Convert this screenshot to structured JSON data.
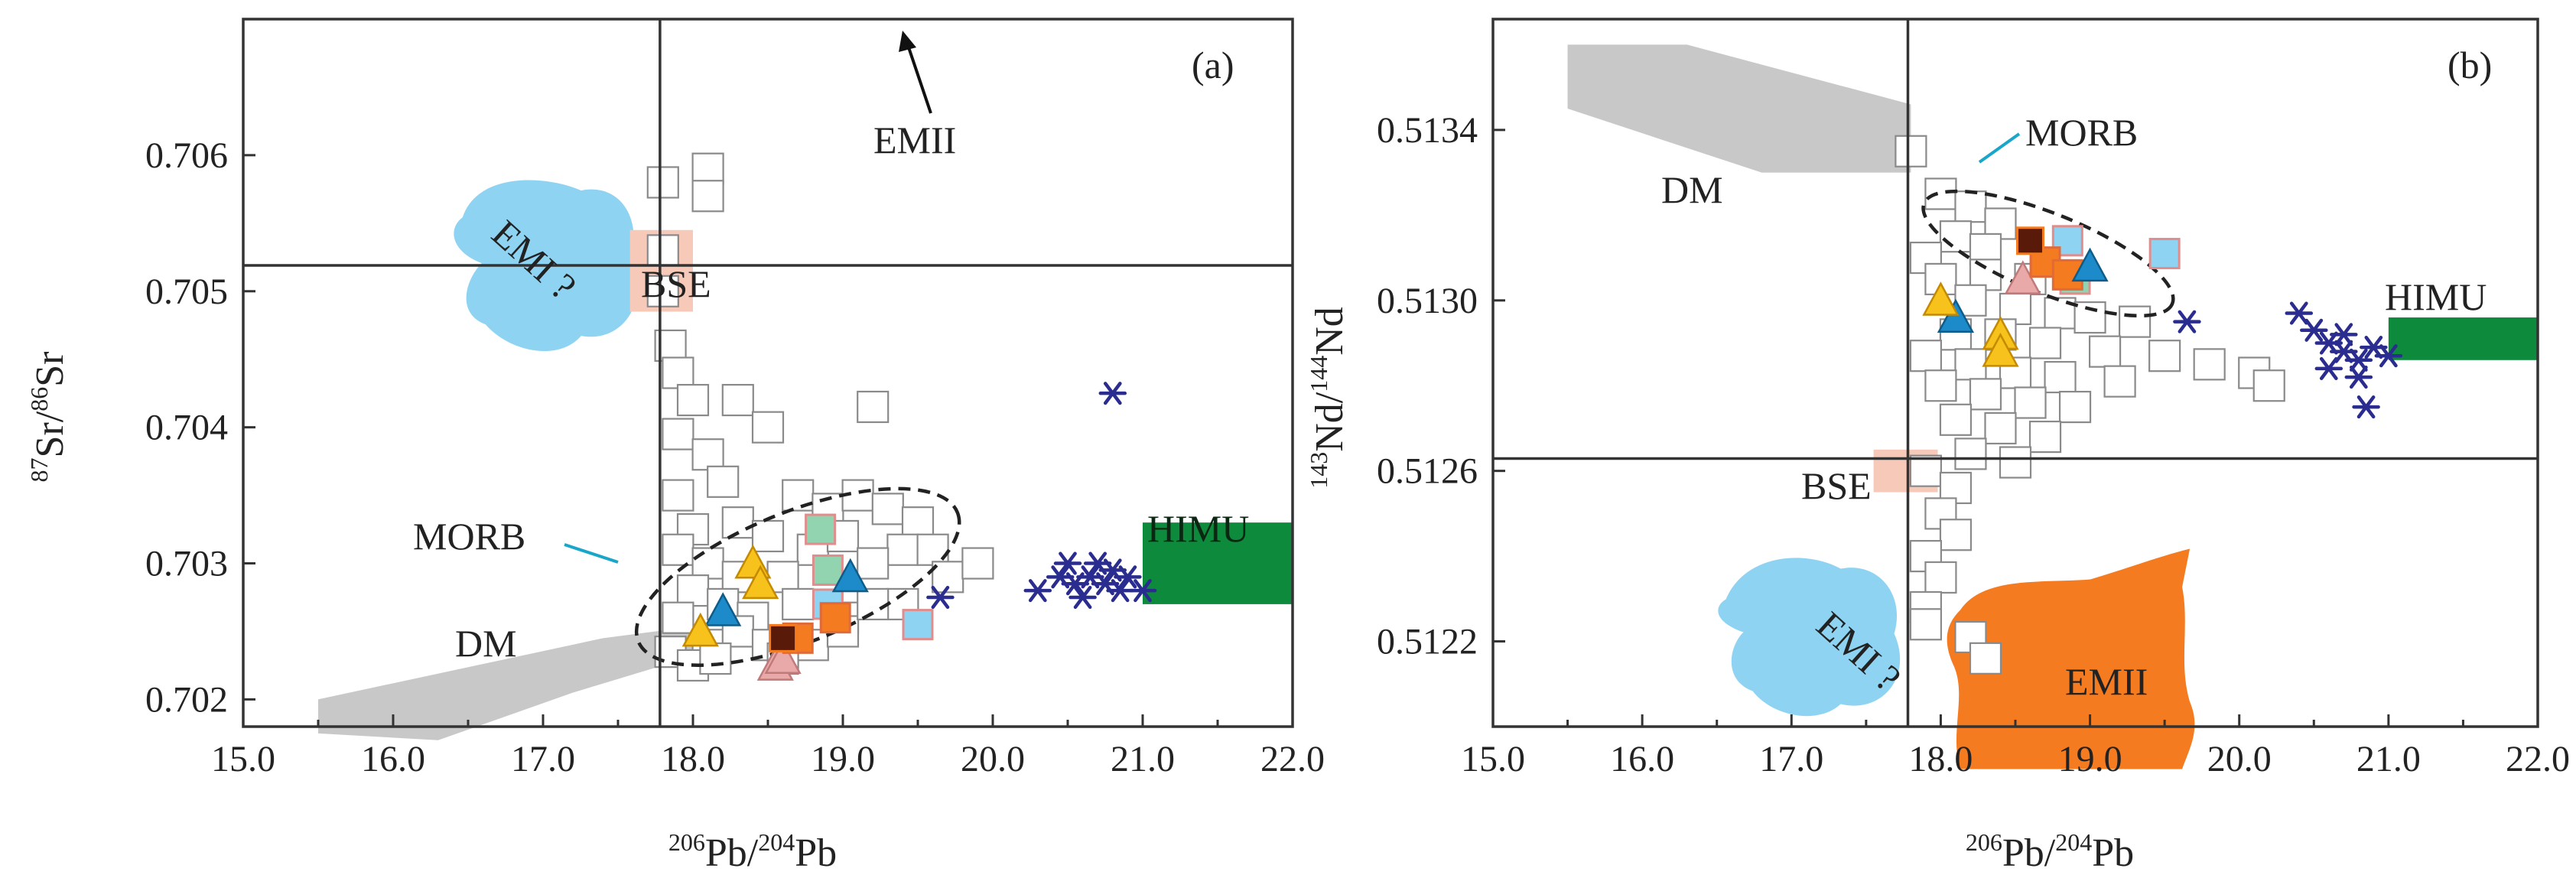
{
  "figure": {
    "panels": [
      {
        "panel_label": "(a)",
        "xlabel": {
          "sup": "206",
          "main": "Pb/",
          "sup2": "204",
          "main2": "Pb"
        },
        "ylabel": {
          "sup": "87",
          "main": "Sr/",
          "sup2": "86",
          "main2": "Sr"
        },
        "x_ticks": [
          "15.0",
          "16.0",
          "17.0",
          "18.0",
          "19.0",
          "20.0",
          "21.0",
          "22.0"
        ],
        "y_ticks": [
          "0.702",
          "0.703",
          "0.704",
          "0.705",
          "0.706"
        ],
        "fields": {
          "EMII": "EMII",
          "EMI": "EMI ?",
          "BSE": "BSE",
          "MORB": "MORB",
          "HIMU": "HIMU",
          "DM": "DM"
        }
      },
      {
        "panel_label": "(b)",
        "xlabel": {
          "sup": "206",
          "main": "Pb/",
          "sup2": "204",
          "main2": "Pb"
        },
        "ylabel": {
          "sup": "143",
          "main": "Nd/",
          "sup2": "144",
          "main2": "Nd"
        },
        "x_ticks": [
          "15.0",
          "16.0",
          "17.0",
          "18.0",
          "19.0",
          "20.0",
          "21.0",
          "22.0"
        ],
        "y_ticks": [
          "0.5122",
          "0.5126",
          "0.5130",
          "0.5134"
        ],
        "fields": {
          "MORB": "MORB",
          "DM": "DM",
          "HIMU": "HIMU",
          "BSE": "BSE",
          "EMI": "EMI ?",
          "EMII": "EMII"
        }
      }
    ]
  },
  "colors": {
    "background_squares": "#8a8a8a",
    "dm_field": "#c8c8c8",
    "himu_field": "#0e8a3c",
    "emi_field": "#8fd3f2",
    "emii_field": "#f47b20",
    "bse_field": "#f7c9b9",
    "star_symbol": "#2a2c8f",
    "triangle_yellow": "#f7c21b",
    "triangle_blue": "#1d8bc9",
    "triangle_pink": "#e9a9a9",
    "square_orange": "#f47b20",
    "square_darkbrown": "#5a1a0a",
    "square_mint": "#92d3b0",
    "square_lightblue": "#8fd3f2",
    "morb_pointer": "#1aa6c9"
  },
  "chart_data": [
    {
      "type": "scatter",
      "title": "(a)",
      "xlabel": "206Pb/204Pb",
      "ylabel": "87Sr/86Sr",
      "xlim": [
        15.0,
        22.0
      ],
      "ylim": [
        0.7018,
        0.707
      ],
      "reference_lines": {
        "x": 17.78,
        "y": 0.70519
      },
      "fields": [
        {
          "name": "DM",
          "x_range": [
            15.5,
            18.1
          ],
          "y_range": [
            0.7017,
            0.7025
          ]
        },
        {
          "name": "HIMU",
          "x_range": [
            21.0,
            22.0
          ],
          "y_range": [
            0.7027,
            0.7033
          ]
        },
        {
          "name": "EMI ?",
          "x": 17.0,
          "y": 0.7051
        },
        {
          "name": "BSE",
          "x": 17.7,
          "y": 0.7052
        },
        {
          "name": "MORB",
          "center": [
            18.7,
            0.7029
          ]
        },
        {
          "name": "EMII",
          "direction": "off-chart, up"
        }
      ],
      "series": [
        {
          "name": "Reference data (open squares)",
          "points": [
            [
              17.8,
              0.7058
            ],
            [
              18.1,
              0.7059
            ],
            [
              18.1,
              0.7057
            ],
            [
              17.8,
              0.7053
            ],
            [
              17.8,
              0.705
            ],
            [
              17.85,
              0.7046
            ],
            [
              17.9,
              0.7044
            ],
            [
              18.0,
              0.7042
            ],
            [
              18.3,
              0.7042
            ],
            [
              18.5,
              0.704
            ],
            [
              19.2,
              0.70415
            ],
            [
              17.9,
              0.70395
            ],
            [
              18.1,
              0.7038
            ],
            [
              18.2,
              0.7036
            ],
            [
              18.7,
              0.7035
            ],
            [
              18.9,
              0.7034
            ],
            [
              19.1,
              0.7035
            ],
            [
              19.3,
              0.7034
            ],
            [
              19.5,
              0.7033
            ],
            [
              17.9,
              0.7035
            ],
            [
              18.0,
              0.70325
            ],
            [
              18.3,
              0.7033
            ],
            [
              18.5,
              0.7032
            ],
            [
              18.8,
              0.7031
            ],
            [
              19.0,
              0.7032
            ],
            [
              19.4,
              0.7031
            ],
            [
              19.6,
              0.7031
            ],
            [
              17.9,
              0.7031
            ],
            [
              18.1,
              0.703
            ],
            [
              18.3,
              0.7029
            ],
            [
              18.6,
              0.7029
            ],
            [
              19.2,
              0.703
            ],
            [
              19.7,
              0.7029
            ],
            [
              19.9,
              0.703
            ],
            [
              18.0,
              0.7028
            ],
            [
              18.2,
              0.7027
            ],
            [
              18.4,
              0.7026
            ],
            [
              18.7,
              0.7027
            ],
            [
              19.0,
              0.7026
            ],
            [
              19.4,
              0.7027
            ],
            [
              17.9,
              0.7026
            ],
            [
              18.1,
              0.7024
            ],
            [
              18.3,
              0.7025
            ],
            [
              18.5,
              0.7024
            ],
            [
              18.8,
              0.7024
            ],
            [
              17.85,
              0.70235
            ],
            [
              18.0,
              0.70225
            ],
            [
              18.15,
              0.7023
            ],
            [
              18.6,
              0.7023
            ],
            [
              19.0,
              0.7025
            ],
            [
              19.2,
              0.7027
            ]
          ]
        },
        {
          "name": "Star symbols",
          "points": [
            [
              20.3,
              0.7028
            ],
            [
              20.45,
              0.7029
            ],
            [
              20.55,
              0.70285
            ],
            [
              20.65,
              0.7029
            ],
            [
              20.7,
              0.703
            ],
            [
              20.8,
              0.70295
            ],
            [
              20.85,
              0.7028
            ],
            [
              20.6,
              0.70275
            ],
            [
              20.9,
              0.7029
            ],
            [
              21.0,
              0.7028
            ],
            [
              20.5,
              0.703
            ],
            [
              20.75,
              0.70285
            ],
            [
              20.8,
              0.70425
            ],
            [
              19.65,
              0.70275
            ]
          ]
        },
        {
          "name": "Yellow triangles",
          "points": [
            [
              18.4,
              0.703
            ],
            [
              18.45,
              0.70285
            ],
            [
              18.05,
              0.7025
            ]
          ]
        },
        {
          "name": "Blue triangles",
          "points": [
            [
              18.2,
              0.70265
            ],
            [
              19.05,
              0.7029
            ]
          ]
        },
        {
          "name": "Pink triangles",
          "points": [
            [
              18.55,
              0.70225
            ],
            [
              18.6,
              0.7023
            ]
          ]
        },
        {
          "name": "Orange squares",
          "points": [
            [
              18.7,
              0.70245
            ],
            [
              18.95,
              0.7026
            ]
          ]
        },
        {
          "name": "Dark brown squares",
          "points": [
            [
              18.6,
              0.70245
            ]
          ]
        },
        {
          "name": "Mint squares",
          "points": [
            [
              18.85,
              0.70325
            ],
            [
              18.9,
              0.70295
            ]
          ]
        },
        {
          "name": "Light blue squares",
          "points": [
            [
              19.5,
              0.70255
            ],
            [
              18.9,
              0.7027
            ]
          ]
        }
      ]
    },
    {
      "type": "scatter",
      "title": "(b)",
      "xlabel": "206Pb/204Pb",
      "ylabel": "143Nd/144Nd",
      "xlim": [
        15.0,
        22.0
      ],
      "ylim": [
        0.512,
        0.51366
      ],
      "reference_lines": {
        "x": 17.78,
        "y": 0.512629
      },
      "fields": [
        {
          "name": "DM",
          "x_range": [
            15.5,
            18.0
          ],
          "y_range": [
            0.5133,
            0.5136
          ]
        },
        {
          "name": "HIMU",
          "x_range": [
            21.0,
            22.0
          ],
          "y_range": [
            0.51286,
            0.51296
          ]
        },
        {
          "name": "EMI ?",
          "x": 17.1,
          "y": 0.51218
        },
        {
          "name": "EMII",
          "x": 18.9,
          "y": 0.51214
        },
        {
          "name": "BSE",
          "x": 17.7,
          "y": 0.51261
        },
        {
          "name": "MORB",
          "center": [
            18.7,
            0.51311
          ]
        }
      ],
      "series": [
        {
          "name": "Reference data (open squares)",
          "points": [
            [
              17.8,
              0.51335
            ],
            [
              18.0,
              0.51325
            ],
            [
              18.2,
              0.51322
            ],
            [
              18.4,
              0.51318
            ],
            [
              18.1,
              0.51315
            ],
            [
              18.3,
              0.51312
            ],
            [
              17.9,
              0.5131
            ],
            [
              18.0,
              0.51305
            ],
            [
              18.3,
              0.51306
            ],
            [
              18.6,
              0.51305
            ],
            [
              18.2,
              0.513
            ],
            [
              18.5,
              0.51298
            ],
            [
              18.8,
              0.51297
            ],
            [
              19.0,
              0.51296
            ],
            [
              19.3,
              0.51295
            ],
            [
              18.1,
              0.51292
            ],
            [
              18.4,
              0.51292
            ],
            [
              18.7,
              0.5129
            ],
            [
              19.1,
              0.51288
            ],
            [
              19.5,
              0.51287
            ],
            [
              19.8,
              0.51285
            ],
            [
              20.1,
              0.51283
            ],
            [
              20.2,
              0.5128
            ],
            [
              17.9,
              0.51287
            ],
            [
              18.2,
              0.51285
            ],
            [
              18.5,
              0.51283
            ],
            [
              18.8,
              0.51282
            ],
            [
              19.2,
              0.51281
            ],
            [
              18.0,
              0.5128
            ],
            [
              18.3,
              0.51278
            ],
            [
              18.6,
              0.51276
            ],
            [
              18.9,
              0.51275
            ],
            [
              18.1,
              0.51272
            ],
            [
              18.4,
              0.5127
            ],
            [
              18.7,
              0.51268
            ],
            [
              18.2,
              0.51264
            ],
            [
              18.5,
              0.51262
            ],
            [
              17.9,
              0.5126
            ],
            [
              18.1,
              0.51256
            ],
            [
              18.0,
              0.5125
            ],
            [
              18.1,
              0.51245
            ],
            [
              17.9,
              0.5124
            ],
            [
              18.0,
              0.51235
            ],
            [
              17.9,
              0.51228
            ],
            [
              18.2,
              0.51221
            ],
            [
              18.3,
              0.51216
            ],
            [
              17.9,
              0.51224
            ]
          ]
        },
        {
          "name": "Star symbols",
          "points": [
            [
              20.4,
              0.51297
            ],
            [
              20.5,
              0.51293
            ],
            [
              20.6,
              0.5129
            ],
            [
              20.7,
              0.51288
            ],
            [
              20.8,
              0.51286
            ],
            [
              20.9,
              0.51289
            ],
            [
              20.6,
              0.51284
            ],
            [
              20.8,
              0.51282
            ],
            [
              21.0,
              0.51287
            ],
            [
              20.7,
              0.51292
            ],
            [
              20.85,
              0.51275
            ],
            [
              19.65,
              0.51295
            ]
          ]
        },
        {
          "name": "Yellow triangles",
          "points": [
            [
              18.0,
              0.513
            ],
            [
              18.4,
              0.51292
            ],
            [
              18.4,
              0.51288
            ]
          ]
        },
        {
          "name": "Blue triangles",
          "points": [
            [
              18.1,
              0.51296
            ],
            [
              19.0,
              0.51308
            ]
          ]
        },
        {
          "name": "Pink triangles",
          "points": [
            [
              18.55,
              0.51305
            ]
          ]
        },
        {
          "name": "Orange squares",
          "points": [
            [
              18.7,
              0.51309
            ],
            [
              18.85,
              0.51306
            ]
          ]
        },
        {
          "name": "Dark brown squares",
          "points": [
            [
              18.6,
              0.51314
            ]
          ]
        },
        {
          "name": "Mint squares",
          "points": [
            [
              18.9,
              0.51305
            ]
          ]
        },
        {
          "name": "Light blue squares",
          "points": [
            [
              19.5,
              0.51311
            ],
            [
              18.85,
              0.51314
            ]
          ]
        }
      ]
    }
  ]
}
